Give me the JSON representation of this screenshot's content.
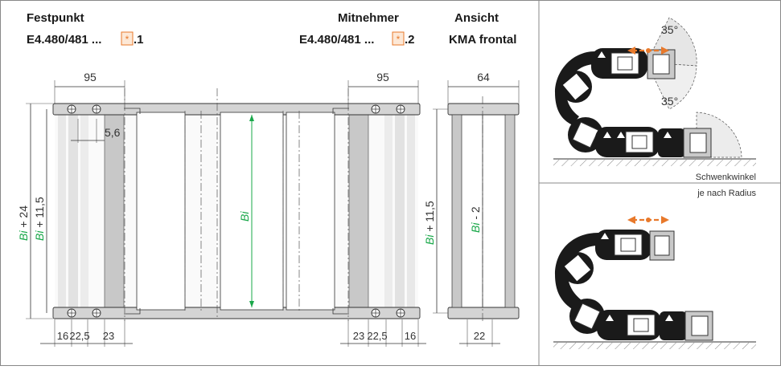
{
  "headers": {
    "fixed_title": "Festpunkt",
    "fixed_code_prefix": "E4.480/481 ...",
    "fixed_code_suffix": ".1",
    "moving_title": "Mitnehmer",
    "moving_code_prefix": "E4.480/481 ...",
    "moving_code_suffix": ".2",
    "view_title": "Ansicht",
    "view_subtitle": "KMA frontal"
  },
  "dimensions": {
    "left_width": "95",
    "right_width": "95",
    "view_width": "64",
    "offset": "5,6",
    "bottom_left": [
      "16",
      "22,5",
      "23"
    ],
    "bottom_right": [
      "23",
      "22,5",
      "16"
    ],
    "bottom_view": "22",
    "center_bi": "Bi",
    "left_outer_prefix": "Bi",
    "left_outer_suffix": " + 24",
    "left_inner_prefix": "Bi",
    "left_inner_suffix": " + 11,5",
    "view_outer_prefix": "Bi",
    "view_outer_suffix": " + 11,5",
    "view_inner_prefix": "Bi",
    "view_inner_suffix": " - 2"
  },
  "side_view": {
    "angle_top": "35°",
    "angle_bottom": "35°",
    "note_line1": "Schwenkwinkel",
    "note_line2": "je nach Radius"
  },
  "colors": {
    "accent_orange": "#e8792b",
    "dimension_green": "#1aa84a",
    "part_grey": "#c8c8c8",
    "light_grey": "#e2e2e2"
  }
}
